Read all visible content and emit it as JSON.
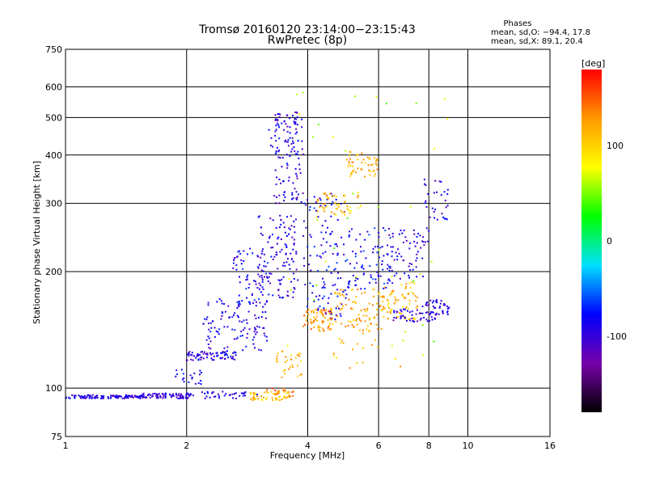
{
  "chart_data": {
    "type": "scatter",
    "title": "Tromsø 20160120 23:14:00−23:15:43",
    "subtitle": "RwPretec (8p)",
    "xlabel": "Frequency [MHz]",
    "ylabel": "Stationary phase Virtual Height [km]",
    "x_scale": "log",
    "y_scale": "log",
    "xlim": [
      1,
      16
    ],
    "ylim": [
      75,
      750
    ],
    "x_ticks": [
      1,
      2,
      4,
      6,
      8,
      10,
      16
    ],
    "y_ticks": [
      75,
      100,
      200,
      300,
      400,
      500,
      600,
      750
    ],
    "grid": true,
    "phase_stats": {
      "heading": "Phases",
      "line_o": "mean, sd,O: −94.4, 17.8",
      "line_x": "mean, sd,X:  89.1, 20.4"
    },
    "colorbar": {
      "label": "[deg]",
      "ticks": [
        100,
        0,
        -100
      ],
      "min": -180,
      "max": 180,
      "colors": [
        "#000000",
        "#7700aa",
        "#0000ff",
        "#00e0ff",
        "#00ff00",
        "#ffff00",
        "#ff9900",
        "#ff0000"
      ]
    },
    "clusters": [
      {
        "f": [
          1.0,
          1.55
        ],
        "h": [
          94,
          96
        ],
        "phase": -95,
        "n": 120
      },
      {
        "f": [
          1.55,
          2.05
        ],
        "h": [
          94,
          97
        ],
        "phase": -100,
        "n": 80
      },
      {
        "f": [
          1.85,
          2.2
        ],
        "h": [
          102,
          112
        ],
        "phase": -90,
        "n": 20
      },
      {
        "f": [
          2.0,
          2.7
        ],
        "h": [
          118,
          125
        ],
        "phase": -95,
        "n": 70
      },
      {
        "f": [
          2.2,
          3.2
        ],
        "h": [
          125,
          170
        ],
        "phase": -90,
        "n": 110
      },
      {
        "f": [
          2.6,
          3.2
        ],
        "h": [
          165,
          230
        ],
        "phase": -85,
        "n": 60
      },
      {
        "f": [
          2.0,
          3.0
        ],
        "h": [
          94,
          98
        ],
        "phase": -95,
        "n": 40
      },
      {
        "f": [
          2.85,
          3.6
        ],
        "h": [
          93,
          98
        ],
        "phase": 110,
        "n": 55
      },
      {
        "f": [
          3.1,
          3.7
        ],
        "h": [
          95,
          100
        ],
        "phase": 150,
        "n": 15
      },
      {
        "f": [
          3.0,
          3.8
        ],
        "h": [
          170,
          280
        ],
        "phase": -95,
        "n": 120
      },
      {
        "f": [
          3.3,
          3.9
        ],
        "h": [
          300,
          520
        ],
        "phase": -100,
        "n": 90
      },
      {
        "f": [
          3.2,
          3.8
        ],
        "h": [
          380,
          500
        ],
        "phase": -90,
        "n": 40
      },
      {
        "f": [
          3.3,
          3.9
        ],
        "h": [
          105,
          125
        ],
        "phase": 120,
        "n": 30
      },
      {
        "f": [
          3.9,
          4.6
        ],
        "h": [
          140,
          160
        ],
        "phase": 130,
        "n": 70
      },
      {
        "f": [
          3.9,
          5.0
        ],
        "h": [
          150,
          320
        ],
        "phase": -85,
        "n": 120
      },
      {
        "f": [
          4.2,
          5.5
        ],
        "h": [
          280,
          320
        ],
        "phase": 110,
        "n": 50
      },
      {
        "f": [
          5.0,
          6.0
        ],
        "h": [
          350,
          410
        ],
        "phase": 115,
        "n": 50
      },
      {
        "f": [
          4.5,
          6.2
        ],
        "h": [
          140,
          180
        ],
        "phase": 120,
        "n": 90
      },
      {
        "f": [
          5.0,
          6.5
        ],
        "h": [
          180,
          260
        ],
        "phase": -80,
        "n": 80
      },
      {
        "f": [
          6.0,
          7.5
        ],
        "h": [
          150,
          190
        ],
        "phase": 110,
        "n": 70
      },
      {
        "f": [
          6.3,
          8.0
        ],
        "h": [
          190,
          260
        ],
        "phase": -95,
        "n": 70
      },
      {
        "f": [
          6.5,
          8.4
        ],
        "h": [
          148,
          160
        ],
        "phase": -100,
        "n": 50
      },
      {
        "f": [
          7.6,
          9.0
        ],
        "h": [
          155,
          170
        ],
        "phase": -95,
        "n": 40
      },
      {
        "f": [
          7.8,
          9.0
        ],
        "h": [
          270,
          350
        ],
        "phase": -95,
        "n": 30
      },
      {
        "f": [
          4.6,
          6.8
        ],
        "h": [
          110,
          140
        ],
        "phase": 110,
        "n": 20
      },
      {
        "f": [
          3.5,
          9.0
        ],
        "h": [
          120,
          600
        ],
        "phase": 60,
        "n": 40
      }
    ]
  }
}
